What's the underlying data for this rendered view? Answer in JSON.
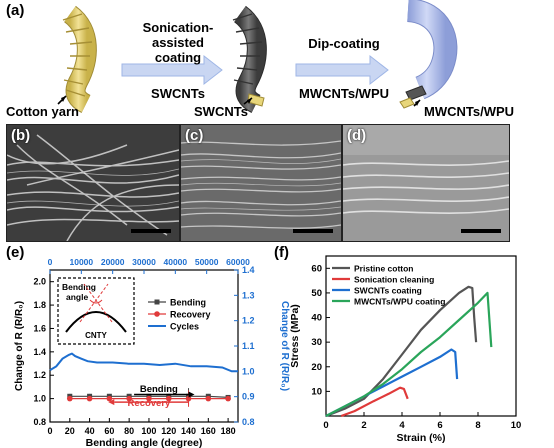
{
  "panel_a": {
    "label": "(a)",
    "step1": {
      "line1": "Sonication-",
      "line2": "assisted coating",
      "material": "SWCNTs"
    },
    "step2": {
      "line1": "Dip-coating",
      "material": "MWCNTs/WPU"
    },
    "yarn_labels": [
      "Cotton yarn",
      "SWCNTs",
      "MWCNTs/WPU"
    ],
    "colors": {
      "cotton": "#e8d67a",
      "swcnt": "#555555",
      "wpu": "#a9b7e6",
      "arrow": "#9fb6e6"
    }
  },
  "sem_panels": [
    {
      "label": "(b)"
    },
    {
      "label": "(c)"
    },
    {
      "label": "(d)"
    }
  ],
  "panel_e": {
    "label": "(e)",
    "inset": {
      "title_line1": "Bending",
      "title_line2": "angle",
      "caption": "CNTY"
    },
    "annotations": {
      "bending": "Bending",
      "recovery": "Recovery"
    }
  },
  "panel_f": {
    "label": "(f)"
  },
  "chart_data": [
    {
      "type": "line",
      "xlabel": "Bending angle (degree)",
      "ylabel": "Change of R (R/R₀)",
      "ylabel_right": "Change of R (R/R₀)",
      "xlim": [
        0,
        190
      ],
      "ylim": [
        0.8,
        2.1
      ],
      "ylim_right": [
        0.8,
        1.4
      ],
      "xticks": [
        "0",
        "20",
        "40",
        "60",
        "80",
        "100",
        "120",
        "140",
        "160",
        "180"
      ],
      "yticks": [
        "0.8",
        "1.0",
        "1.2",
        "1.4",
        "1.6",
        "1.8",
        "2.0"
      ],
      "yticks_right": [
        "0.8",
        "0.9",
        "1.0",
        "1.1",
        "1.2",
        "1.3",
        "1.4"
      ],
      "top_axis": {
        "label_color": "#1e6fd0",
        "xlim": [
          0,
          60000
        ],
        "xticks": [
          "0",
          "10000",
          "20000",
          "30000",
          "40000",
          "50000",
          "60000"
        ]
      },
      "legend": {
        "position": "top-right"
      },
      "series": [
        {
          "name": "Bending",
          "color": "#444444",
          "marker": "square",
          "x": [
            20,
            40,
            60,
            80,
            100,
            120,
            140,
            160,
            180
          ],
          "y": [
            1.02,
            1.02,
            1.02,
            1.02,
            1.02,
            1.02,
            1.02,
            1.02,
            1.01
          ],
          "err": [
            0.02,
            0.02,
            0.02,
            0.02,
            0.02,
            0.02,
            0.07,
            0.02,
            0.02
          ]
        },
        {
          "name": "Recovery",
          "color": "#e03a3a",
          "marker": "circle",
          "x": [
            20,
            40,
            60,
            80,
            100,
            120,
            140,
            160,
            180
          ],
          "y": [
            1.0,
            1.0,
            1.0,
            1.0,
            1.0,
            1.0,
            1.0,
            1.0,
            1.0
          ],
          "err": [
            0.02,
            0.02,
            0.02,
            0.02,
            0.02,
            0.02,
            0.07,
            0.02,
            0.02
          ]
        },
        {
          "name": "Cycles",
          "color": "#1e6fd0",
          "axis": "right-top",
          "x": [
            0,
            2000,
            4000,
            6000,
            7000,
            8000,
            10000,
            12000,
            15000,
            20000,
            25000,
            30000,
            35000,
            40000,
            45000,
            50000,
            55000,
            58000,
            60000
          ],
          "y": [
            1.005,
            1.02,
            1.05,
            1.065,
            1.07,
            1.06,
            1.05,
            1.04,
            1.035,
            1.035,
            1.03,
            1.03,
            1.025,
            1.03,
            1.02,
            1.02,
            1.015,
            1.0,
            1.0
          ]
        }
      ]
    },
    {
      "type": "line",
      "xlabel": "Strain (%)",
      "ylabel": "Stress (MPa)",
      "xlim": [
        0,
        10
      ],
      "ylim": [
        0,
        65
      ],
      "xticks": [
        "0",
        "2",
        "4",
        "6",
        "8",
        "10"
      ],
      "yticks": [
        "10",
        "20",
        "30",
        "40",
        "50",
        "60"
      ],
      "legend": {
        "position": "top-left"
      },
      "series": [
        {
          "name": "Pristine cotton",
          "color": "#555555",
          "x": [
            0,
            1,
            2,
            3,
            4,
            5,
            6,
            7,
            7.5,
            7.7,
            7.8,
            7.9
          ],
          "y": [
            0,
            3,
            7,
            15,
            25,
            35,
            43,
            50,
            52.5,
            52,
            40,
            30
          ]
        },
        {
          "name": "Sonication cleaning",
          "color": "#e03a3a",
          "x": [
            0.8,
            1.5,
            2.5,
            3.3,
            3.9,
            4.1,
            4.3
          ],
          "y": [
            0,
            2,
            6,
            9,
            11.5,
            11,
            7
          ]
        },
        {
          "name": "SWCNTs coating",
          "color": "#1e6fd0",
          "x": [
            0,
            1,
            2,
            3,
            4,
            5,
            6,
            6.6,
            6.8,
            6.9
          ],
          "y": [
            0,
            4,
            8,
            12,
            16,
            20,
            24,
            27,
            26,
            15
          ]
        },
        {
          "name": "MWCNTs/WPU coating",
          "color": "#2aa55a",
          "x": [
            0,
            1,
            2,
            3,
            4,
            5,
            6,
            7,
            8,
            8.5,
            8.7
          ],
          "y": [
            0,
            4,
            8,
            13,
            19,
            26,
            32,
            39,
            46,
            50,
            28
          ]
        }
      ]
    }
  ]
}
